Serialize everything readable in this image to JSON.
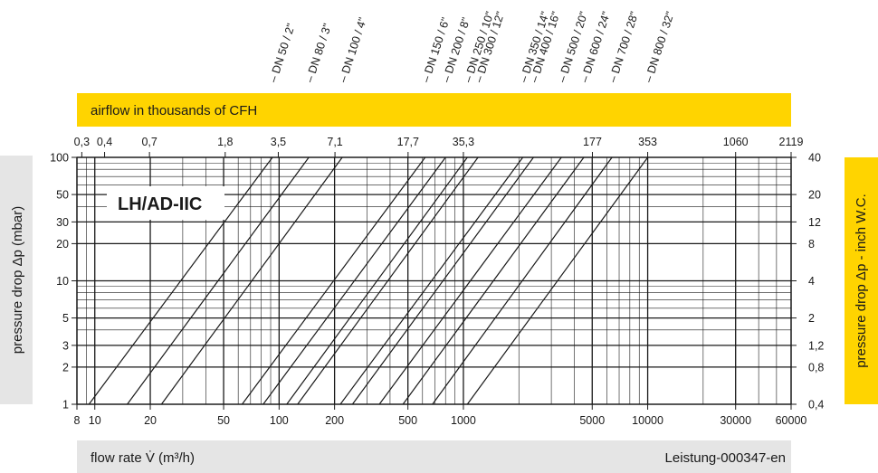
{
  "chart_data": {
    "type": "line",
    "title": "LH/AD-IIC",
    "xlabel": "flow rate V̇ (m³/h)",
    "ylabel": "pressure drop Δp (mbar)",
    "top_axis_label": "airflow in thousands of CFH",
    "right_axis_label": "pressure  drop Δp - inch W.C.",
    "footer_code": "Leistung-000347-en",
    "x_scale": "log",
    "y_scale": "log",
    "xlim": [
      8,
      60000
    ],
    "ylim": [
      1,
      100
    ],
    "grid": true,
    "x_ticks": [
      8,
      10,
      20,
      50,
      100,
      200,
      500,
      1000,
      5000,
      10000,
      30000,
      60000
    ],
    "x_tick_labels": [
      "8",
      "10",
      "20",
      "50",
      "100",
      "200",
      "500",
      "1000",
      "5000",
      "10000",
      "30000",
      "60000"
    ],
    "y_ticks": [
      1,
      2,
      3,
      5,
      10,
      20,
      30,
      50,
      100
    ],
    "y_tick_labels": [
      "1",
      "2",
      "3",
      "5",
      "10",
      "20",
      "30",
      "50",
      "100"
    ],
    "top_ticks": [
      {
        "label": "0,3",
        "m3h": 8.5
      },
      {
        "label": "0,4",
        "m3h": 11.3
      },
      {
        "label": "0,7",
        "m3h": 19.8
      },
      {
        "label": "1,8",
        "m3h": 51
      },
      {
        "label": "3,5",
        "m3h": 99
      },
      {
        "label": "7,1",
        "m3h": 201
      },
      {
        "label": "17,7",
        "m3h": 501
      },
      {
        "label": "35,3",
        "m3h": 1000
      },
      {
        "label": "177",
        "m3h": 5012
      },
      {
        "label": "353",
        "m3h": 10000
      },
      {
        "label": "1060",
        "m3h": 30000
      },
      {
        "label": "2119",
        "m3h": 60000
      }
    ],
    "right_ticks": [
      {
        "label": "40",
        "mbar": 100
      },
      {
        "label": "20",
        "mbar": 50
      },
      {
        "label": "12",
        "mbar": 30
      },
      {
        "label": "8",
        "mbar": 20
      },
      {
        "label": "4",
        "mbar": 10
      },
      {
        "label": "2",
        "mbar": 5
      },
      {
        "label": "1,2",
        "mbar": 3
      },
      {
        "label": "0,8",
        "mbar": 2
      },
      {
        "label": "0,4",
        "mbar": 1
      }
    ],
    "series": [
      {
        "name": "DN 50 / 2\"",
        "x": [
          9.3,
          92
        ],
        "y": [
          1,
          100
        ]
      },
      {
        "name": "DN 80 / 3\"",
        "x": [
          15,
          145
        ],
        "y": [
          1,
          100
        ]
      },
      {
        "name": "DN 100 / 4\"",
        "x": [
          23,
          220
        ],
        "y": [
          1,
          100
        ]
      },
      {
        "name": "DN 150 / 6\"",
        "x": [
          63,
          620
        ],
        "y": [
          1,
          100
        ]
      },
      {
        "name": "DN 200 / 8\"",
        "x": [
          82,
          800
        ],
        "y": [
          1,
          100
        ]
      },
      {
        "name": "DN 250 / 10\"",
        "x": [
          110,
          1050
        ],
        "y": [
          1,
          100
        ]
      },
      {
        "name": "DN 300 / 12\"",
        "x": [
          126,
          1200
        ],
        "y": [
          1,
          100
        ]
      },
      {
        "name": "DN 350 / 14\"",
        "x": [
          215,
          2100
        ],
        "y": [
          1,
          100
        ]
      },
      {
        "name": "DN 400 / 16\"",
        "x": [
          250,
          2400
        ],
        "y": [
          1,
          100
        ]
      },
      {
        "name": "DN 500 / 20\"",
        "x": [
          350,
          3400
        ],
        "y": [
          1,
          100
        ]
      },
      {
        "name": "DN 600 / 24\"",
        "x": [
          470,
          4500
        ],
        "y": [
          1,
          100
        ]
      },
      {
        "name": "DN 700 / 28\"",
        "x": [
          680,
          6400
        ],
        "y": [
          1,
          100
        ]
      },
      {
        "name": "DN 800 / 32\"",
        "x": [
          1050,
          10000
        ],
        "y": [
          1,
          100
        ]
      }
    ],
    "dn_labels": [
      {
        "name": "DN 50 / 2\"",
        "m3h": 92
      },
      {
        "name": "DN 80 / 3\"",
        "m3h": 145
      },
      {
        "name": "DN 100 / 4\"",
        "m3h": 220
      },
      {
        "name": "DN 150 / 6\"",
        "m3h": 620
      },
      {
        "name": "DN 200 / 8\"",
        "m3h": 800
      },
      {
        "name": "DN 250 / 10\"",
        "m3h": 1050
      },
      {
        "name": "DN 300 / 12\"",
        "m3h": 1200
      },
      {
        "name": "DN 350 / 14\"",
        "m3h": 2100
      },
      {
        "name": "DN 400 / 16\"",
        "m3h": 2400
      },
      {
        "name": "DN 500 / 20\"",
        "m3h": 3400
      },
      {
        "name": "DN 600 / 24\"",
        "m3h": 4500
      },
      {
        "name": "DN 700 / 28\"",
        "m3h": 6400
      },
      {
        "name": "DN 800 / 32\"",
        "m3h": 10000
      }
    ],
    "colors": {
      "accent": "#FFD400",
      "band": "#E5E5E5",
      "line": "#1a1a1a"
    }
  }
}
